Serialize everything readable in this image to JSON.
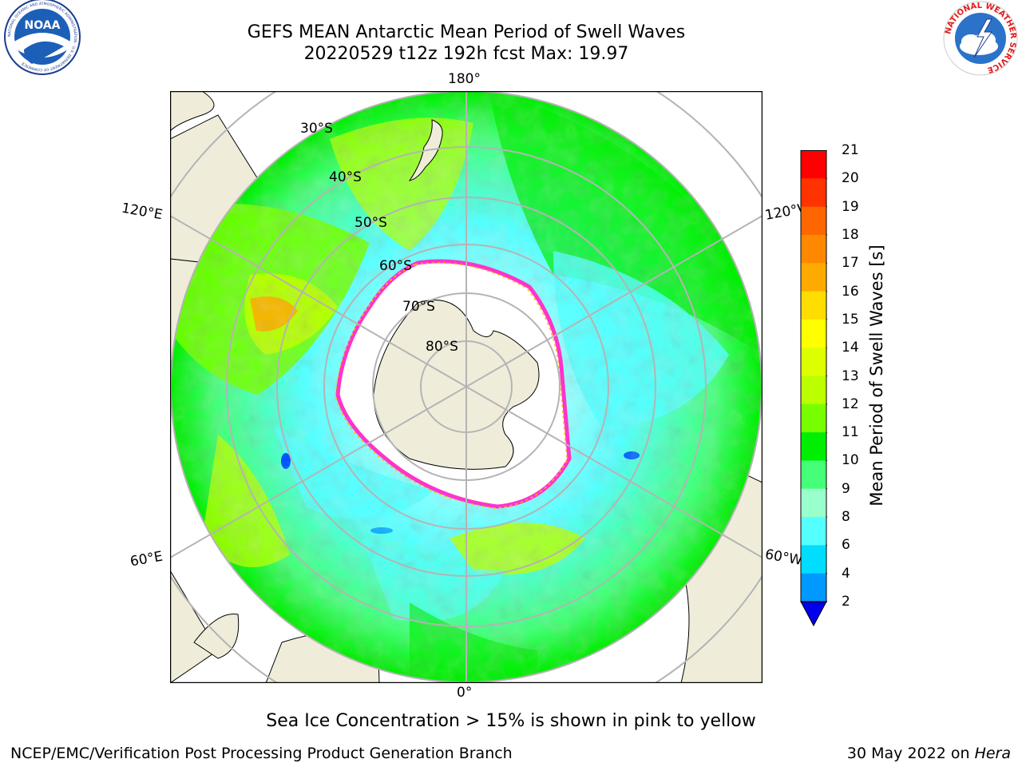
{
  "header": {
    "title_line1": "GEFS MEAN Antarctic Mean Period of Swell Waves",
    "title_line2": "20220529 t12z 192h fcst   Max: 19.97"
  },
  "logos": {
    "noaa_text": "NOAA",
    "noaa_ring": "NATIONAL OCEANIC AND ATMOSPHERIC ADMINISTRATION · U.S. DEPARTMENT OF COMMERCE",
    "nws_ring": "NATIONAL WEATHER SERVICE"
  },
  "map": {
    "longitude_labels": {
      "top": "180°",
      "bottom": "0°",
      "upper_left": "120°E",
      "lower_left": "60°E",
      "upper_right": "120°W",
      "lower_right": "60°W"
    },
    "latitude_labels": [
      "30°S",
      "40°S",
      "50°S",
      "60°S",
      "70°S",
      "80°S"
    ],
    "colors": {
      "land": "#efedda",
      "ocean_outside": "#ffffff",
      "ice_edge": "#ff33cc",
      "grid": "#b4b4b4"
    }
  },
  "colorbar": {
    "label": "Mean Period of Swell Waves [s]",
    "ticks": [
      "21",
      "20",
      "19",
      "18",
      "17",
      "16",
      "15",
      "14",
      "13",
      "12",
      "11",
      "10",
      "9",
      "8",
      "6",
      "4",
      "2"
    ],
    "bins_top_to_bottom": [
      "#ff0000",
      "#ff3300",
      "#ff6600",
      "#ff8800",
      "#ffaa00",
      "#ffdd00",
      "#ffff00",
      "#ddff00",
      "#bbff00",
      "#77ff00",
      "#00ee00",
      "#44ff77",
      "#99ffcc",
      "#55ffff",
      "#00ddff",
      "#0099ff",
      "#0033ff"
    ],
    "extend_color": "#0000ee"
  },
  "notes": {
    "sea_ice": "Sea Ice Concentration > 15% is shown in pink to yellow"
  },
  "footer": {
    "left": "NCEP/EMC/Verification Post Processing Product Generation Branch",
    "date": "30 May 2022 on",
    "machine": "Hera"
  }
}
